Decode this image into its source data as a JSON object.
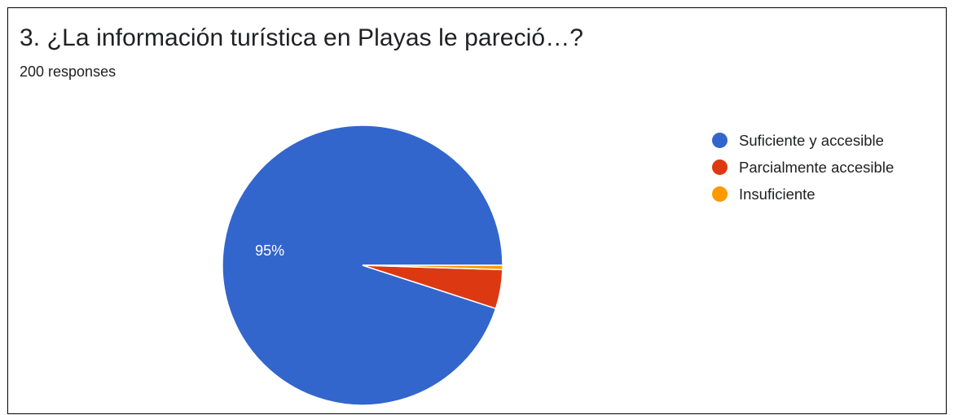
{
  "header": {
    "title": "3.  ¿La información turística en Playas le pareció…?",
    "responses": "200 responses"
  },
  "colors": {
    "accent_blue": "#3366cc",
    "accent_red": "#dc3912",
    "accent_orange": "#ff9900"
  },
  "chart_data": {
    "type": "pie",
    "title": "3.  ¿La información turística en Playas le pareció…?",
    "total_responses": 200,
    "start": "3 o'clock, counter-clockwise",
    "slices": [
      {
        "label": "Suficiente y accesible",
        "value": 95,
        "color": "#3366cc",
        "data_label": "95%"
      },
      {
        "label": "Parcialmente accesible",
        "value": 4.5,
        "color": "#dc3912",
        "data_label": ""
      },
      {
        "label": "Insuficiente",
        "value": 0.5,
        "color": "#ff9900",
        "data_label": ""
      }
    ],
    "legend_position": "right"
  }
}
